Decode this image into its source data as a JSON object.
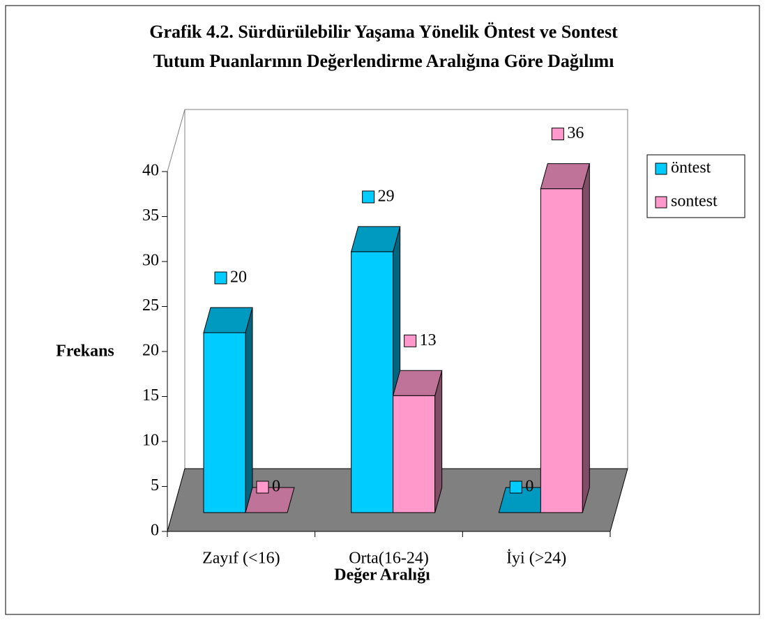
{
  "chart_data": {
    "type": "bar3d",
    "title": [
      "Grafik 4.2. Sürdürülebilir Yaşama Yönelik Öntest ve Sontest",
      "Tutum Puanlarının Değerlendirme Aralığına Göre Dağılımı"
    ],
    "x_label": "Değer Aralığı",
    "y_label": "Frekans",
    "categories": [
      "Zayıf (<16)",
      "Orta(16-24)",
      "İyi (>24)"
    ],
    "series": [
      {
        "name": "öntest",
        "color": "#00ccff",
        "values": [
          20,
          29,
          0
        ]
      },
      {
        "name": "sontest",
        "color": "#ff99cc",
        "values": [
          0,
          13,
          36
        ]
      }
    ],
    "ylim": [
      0,
      40
    ],
    "yticks": [
      0,
      5,
      10,
      15,
      20,
      25,
      30,
      35,
      40
    ],
    "legend": "right"
  }
}
